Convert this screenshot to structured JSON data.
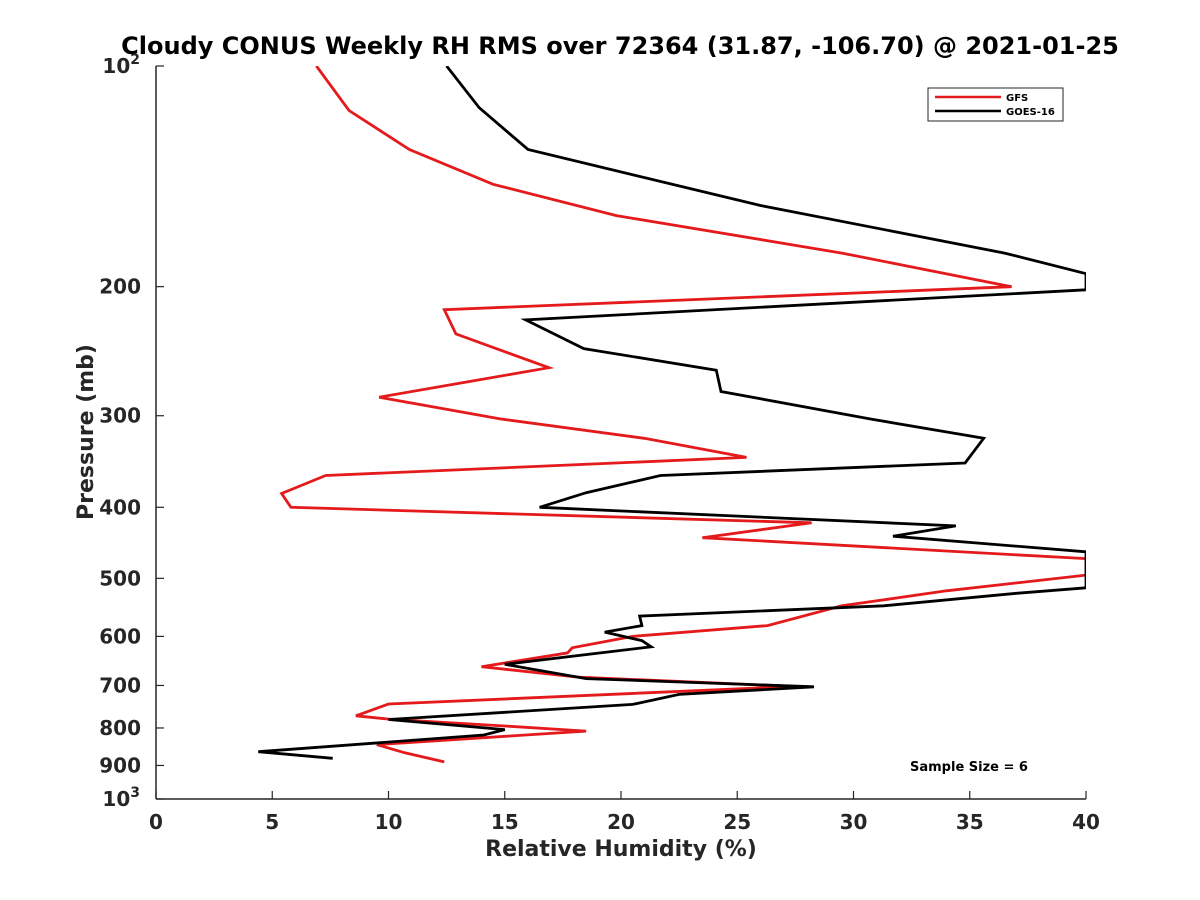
{
  "chart_data": {
    "type": "line",
    "title": "Cloudy CONUS Weekly RH RMS over 72364 (31.87, -106.70) @ 2021-01-25",
    "xlabel": "Relative Humidity (%)",
    "ylabel": "Pressure (mb)",
    "xlim": [
      0,
      40
    ],
    "ylim": [
      100,
      1000
    ],
    "y_scale": "log",
    "y_reversed": true,
    "grid": false,
    "legend_placement": "top-right",
    "x_ticks": [
      "0",
      "5",
      "10",
      "15",
      "20",
      "25",
      "30",
      "35",
      "40"
    ],
    "y_ticks": [
      {
        "value": 100,
        "base": "10",
        "exp": "2"
      },
      {
        "value": 200,
        "label": "200"
      },
      {
        "value": 300,
        "label": "300"
      },
      {
        "value": 400,
        "label": "400"
      },
      {
        "value": 500,
        "label": "500"
      },
      {
        "value": 600,
        "label": "600"
      },
      {
        "value": 700,
        "label": "700"
      },
      {
        "value": 800,
        "label": "800"
      },
      {
        "value": 900,
        "label": "900"
      },
      {
        "value": 1000,
        "base": "10",
        "exp": "3"
      }
    ],
    "series": [
      {
        "name": "GFS",
        "color": "#e41a1c",
        "points": [
          [
            6.9,
            100
          ],
          [
            8.3,
            115
          ],
          [
            10.9,
            130
          ],
          [
            14.5,
            145
          ],
          [
            19.8,
            160
          ],
          [
            29.5,
            180
          ],
          [
            36.8,
            200
          ],
          [
            12.4,
            215
          ],
          [
            12.9,
            232
          ],
          [
            16.9,
            258
          ],
          [
            9.6,
            283
          ],
          [
            14.8,
            303
          ],
          [
            21.0,
            322
          ],
          [
            25.4,
            342
          ],
          [
            7.3,
            362
          ],
          [
            5.4,
            383
          ],
          [
            5.8,
            400
          ],
          [
            28.2,
            420
          ],
          [
            23.5,
            440
          ],
          [
            40.0,
            470
          ],
          [
            40.0,
            495
          ],
          [
            34.0,
            520
          ],
          [
            29.5,
            545
          ],
          [
            26.3,
            580
          ],
          [
            20.5,
            600
          ],
          [
            17.9,
            622
          ],
          [
            17.7,
            632
          ],
          [
            14.0,
            660
          ],
          [
            18.2,
            682
          ],
          [
            27.5,
            702
          ],
          [
            10.0,
            742
          ],
          [
            8.6,
            770
          ],
          [
            10.0,
            778
          ],
          [
            15.0,
            795
          ],
          [
            18.5,
            808
          ],
          [
            9.5,
            843
          ],
          [
            10.7,
            865
          ],
          [
            12.4,
            890
          ]
        ]
      },
      {
        "name": "GOES-16",
        "color": "#000000",
        "points": [
          [
            12.5,
            100
          ],
          [
            13.9,
            114
          ],
          [
            16.0,
            130
          ],
          [
            26.0,
            155
          ],
          [
            36.5,
            180
          ],
          [
            40.0,
            192
          ],
          [
            40.0,
            202
          ],
          [
            15.9,
            222
          ],
          [
            18.4,
            243
          ],
          [
            24.1,
            260
          ],
          [
            24.3,
            278
          ],
          [
            30.7,
            303
          ],
          [
            35.6,
            322
          ],
          [
            34.8,
            348
          ],
          [
            21.7,
            362
          ],
          [
            18.5,
            382
          ],
          [
            16.5,
            400
          ],
          [
            34.4,
            424
          ],
          [
            31.7,
            438
          ],
          [
            40.0,
            460
          ],
          [
            40.0,
            515
          ],
          [
            37.0,
            524
          ],
          [
            31.3,
            545
          ],
          [
            20.8,
            563
          ],
          [
            20.9,
            580
          ],
          [
            19.3,
            592
          ],
          [
            20.9,
            608
          ],
          [
            21.3,
            620
          ],
          [
            15.0,
            655
          ],
          [
            18.5,
            685
          ],
          [
            28.3,
            703
          ],
          [
            22.5,
            720
          ],
          [
            20.5,
            743
          ],
          [
            10.0,
            779
          ],
          [
            15.0,
            804
          ],
          [
            14.1,
            818
          ],
          [
            4.4,
            862
          ],
          [
            7.6,
            880
          ]
        ]
      }
    ],
    "annotation": "Sample Size = 6"
  }
}
